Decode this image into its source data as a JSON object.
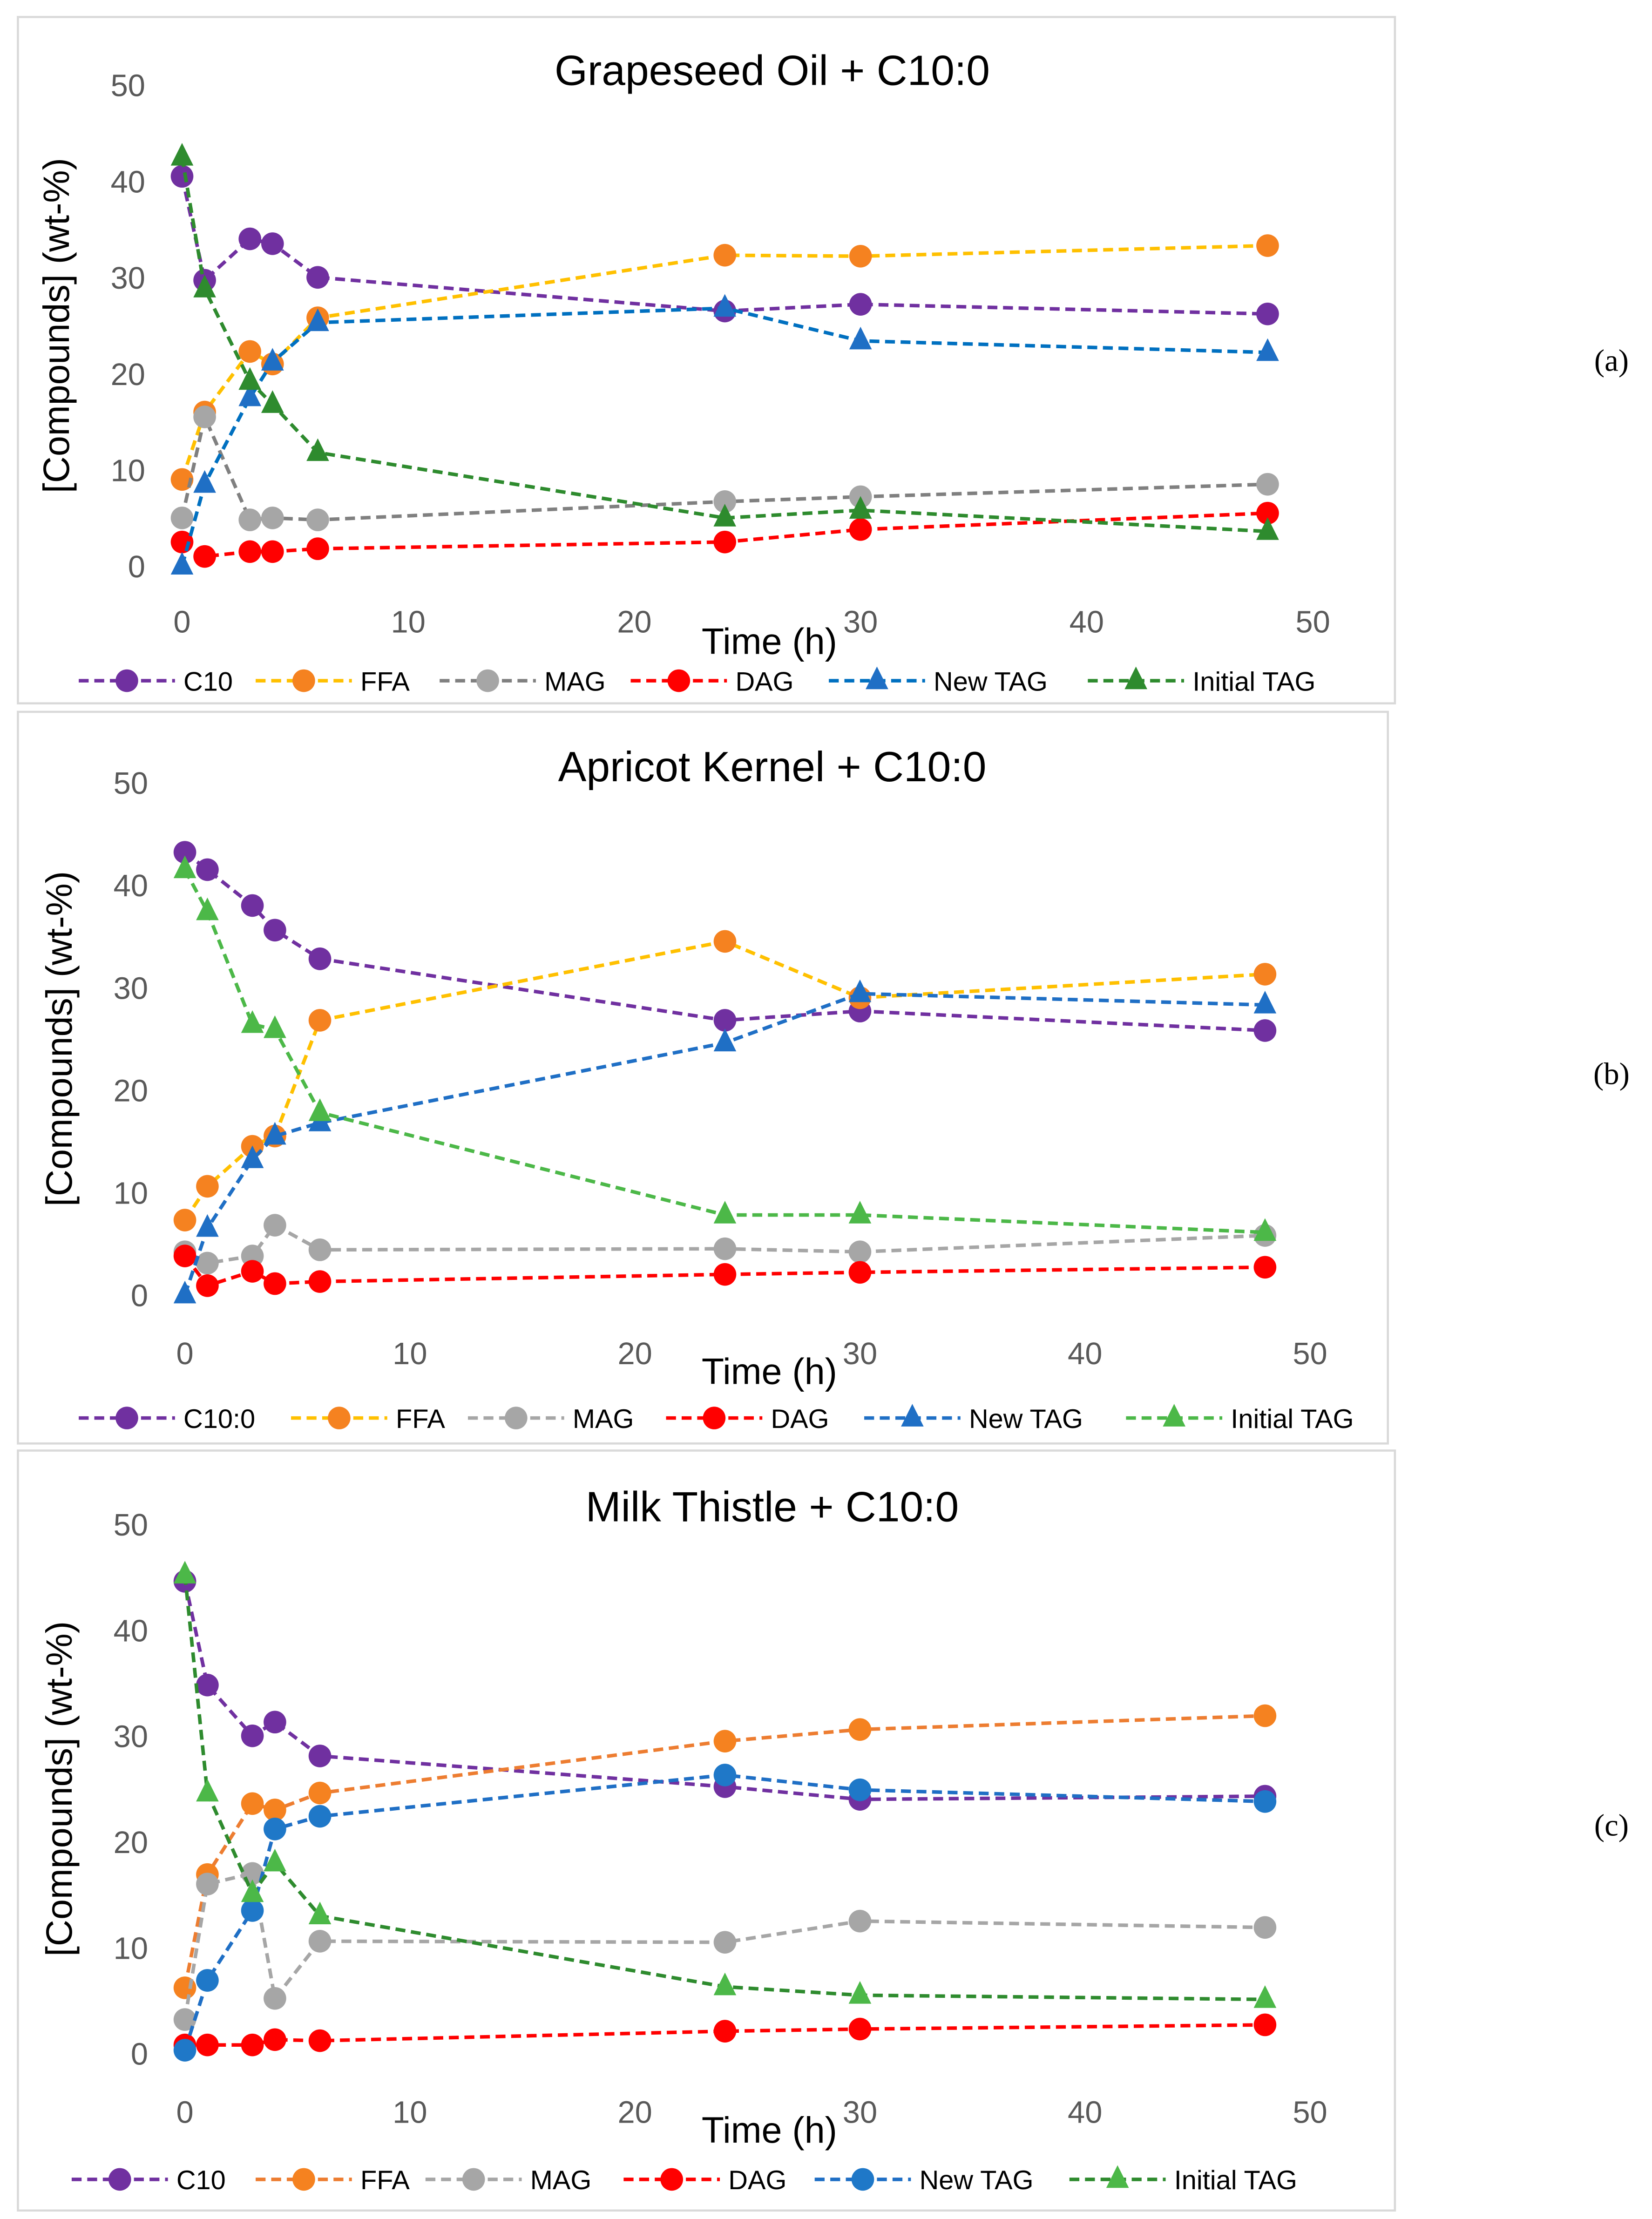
{
  "chart_data": [
    {
      "type": "line",
      "panel_label": "(a)",
      "title": "Grapeseed  Oil + C10:0",
      "xlabel": "Time (h)",
      "ylabel": "[Compounds] (wt-%)",
      "xlim": [
        0,
        50
      ],
      "ylim": [
        0,
        50
      ],
      "xticks": [
        0,
        10,
        20,
        30,
        40,
        50
      ],
      "yticks": [
        0,
        10,
        20,
        30,
        40,
        50
      ],
      "grid": false,
      "legend": "bottom",
      "x": [
        0,
        1,
        3,
        4,
        6,
        24,
        30,
        48
      ],
      "series": [
        {
          "name": "C10",
          "marker": "circle",
          "line_color": "#7030A0",
          "marker_color": "#7030A0",
          "values": [
            40.5,
            29.7,
            34.0,
            33.5,
            30.0,
            26.5,
            27.2,
            26.2
          ]
        },
        {
          "name": "FFA",
          "marker": "circle",
          "line_color": "#FFC000",
          "marker_color": "#F58220",
          "values": [
            9.0,
            16.0,
            22.3,
            21.0,
            25.8,
            32.3,
            32.2,
            33.3
          ]
        },
        {
          "name": "MAG",
          "marker": "circle",
          "line_color": "#808080",
          "marker_color": "#A6A6A6",
          "values": [
            5.0,
            15.5,
            4.8,
            5.0,
            4.8,
            6.7,
            7.2,
            8.5
          ]
        },
        {
          "name": "DAG",
          "marker": "circle",
          "line_color": "#FF0000",
          "marker_color": "#FF0000",
          "values": [
            2.5,
            1.0,
            1.5,
            1.5,
            1.8,
            2.5,
            3.8,
            5.5
          ]
        },
        {
          "name": "New TAG",
          "marker": "triangle",
          "line_color": "#0070C0",
          "marker_color": "#1F6FC5",
          "values": [
            0.0,
            8.5,
            17.5,
            21.2,
            25.3,
            26.8,
            23.4,
            22.2
          ]
        },
        {
          "name": "Initial TAG",
          "marker": "triangle",
          "line_color": "#2E8B2E",
          "marker_color": "#2E8B2E",
          "values": [
            42.5,
            28.8,
            19.2,
            16.8,
            11.8,
            5.0,
            5.8,
            3.6
          ]
        }
      ]
    },
    {
      "type": "line",
      "panel_label": "(b)",
      "title": "Apricot Kernel + C10:0",
      "xlabel": "Time (h)",
      "ylabel": "[Compounds] (wt-%)",
      "xlim": [
        0,
        50
      ],
      "ylim": [
        0,
        50
      ],
      "xticks": [
        0,
        10,
        20,
        30,
        40,
        50
      ],
      "yticks": [
        0,
        10,
        20,
        30,
        40,
        50
      ],
      "grid": false,
      "legend": "bottom",
      "x": [
        0,
        1,
        3,
        4,
        6,
        24,
        30,
        48
      ],
      "series": [
        {
          "name": "C10:0",
          "marker": "circle",
          "line_color": "#7030A0",
          "marker_color": "#7030A0",
          "values": [
            43.2,
            41.5,
            38.0,
            35.6,
            32.8,
            26.8,
            27.7,
            25.8
          ]
        },
        {
          "name": "FFA",
          "marker": "circle",
          "line_color": "#FFC000",
          "marker_color": "#F58220",
          "values": [
            7.3,
            10.6,
            14.5,
            15.5,
            26.8,
            34.5,
            29.0,
            31.3
          ]
        },
        {
          "name": "MAG",
          "marker": "circle",
          "line_color": "#A6A6A6",
          "marker_color": "#A6A6A6",
          "values": [
            4.2,
            3.1,
            3.8,
            6.8,
            4.4,
            4.5,
            4.2,
            5.8
          ]
        },
        {
          "name": "DAG",
          "marker": "circle",
          "line_color": "#FF0000",
          "marker_color": "#FF0000",
          "values": [
            3.8,
            0.9,
            2.3,
            1.1,
            1.3,
            2.0,
            2.2,
            2.7
          ]
        },
        {
          "name": "New TAG",
          "marker": "triangle",
          "line_color": "#1F6FC5",
          "marker_color": "#1F6FC5",
          "values": [
            0.0,
            6.5,
            13.2,
            15.5,
            16.8,
            24.6,
            29.4,
            28.3
          ]
        },
        {
          "name": "Initial TAG",
          "marker": "triangle",
          "line_color": "#4CB848",
          "marker_color": "#4CB848",
          "values": [
            41.5,
            37.4,
            26.4,
            25.9,
            17.8,
            7.8,
            7.8,
            6.1
          ]
        }
      ]
    },
    {
      "type": "line",
      "panel_label": "(c)",
      "title": "Milk Thistle + C10:0",
      "xlabel": "Time (h)",
      "ylabel": "[Compounds]  (wt-%)",
      "xlim": [
        0,
        50
      ],
      "ylim": [
        0,
        50
      ],
      "xticks": [
        0,
        10,
        20,
        30,
        40,
        50
      ],
      "yticks": [
        0,
        10,
        20,
        30,
        40,
        50
      ],
      "grid": false,
      "legend": "bottom",
      "x": [
        0,
        1,
        3,
        4,
        6,
        24,
        30,
        48
      ],
      "series": [
        {
          "name": "C10",
          "marker": "circle",
          "line_color": "#7030A0",
          "marker_color": "#7030A0",
          "values": [
            44.6,
            34.8,
            30.0,
            31.3,
            28.1,
            25.2,
            24.0,
            24.3
          ]
        },
        {
          "name": "FFA",
          "marker": "circle",
          "line_color": "#ED7D31",
          "marker_color": "#F58220",
          "values": [
            6.2,
            16.9,
            23.6,
            23.0,
            24.6,
            29.5,
            30.6,
            31.9
          ]
        },
        {
          "name": "MAG",
          "marker": "circle",
          "line_color": "#A6A6A6",
          "marker_color": "#A6A6A6",
          "values": [
            3.2,
            16.0,
            17.0,
            5.2,
            10.6,
            10.5,
            12.5,
            11.9
          ]
        },
        {
          "name": "DAG",
          "marker": "circle",
          "line_color": "#FF0000",
          "marker_color": "#FF0000",
          "values": [
            0.8,
            0.8,
            0.8,
            1.3,
            1.2,
            2.1,
            2.3,
            2.7
          ]
        },
        {
          "name": "New TAG",
          "marker": "circle",
          "line_color": "#1F6FC5",
          "marker_color": "#1F78C8",
          "values": [
            0.3,
            6.9,
            13.5,
            21.2,
            22.4,
            26.3,
            24.9,
            23.8
          ]
        },
        {
          "name": "Initial TAG",
          "marker": "triangle",
          "line_color": "#2E8B2E",
          "marker_color": "#4CB848",
          "values": [
            45.2,
            24.6,
            15.1,
            18.0,
            13.0,
            6.3,
            5.5,
            5.1
          ]
        }
      ]
    }
  ]
}
